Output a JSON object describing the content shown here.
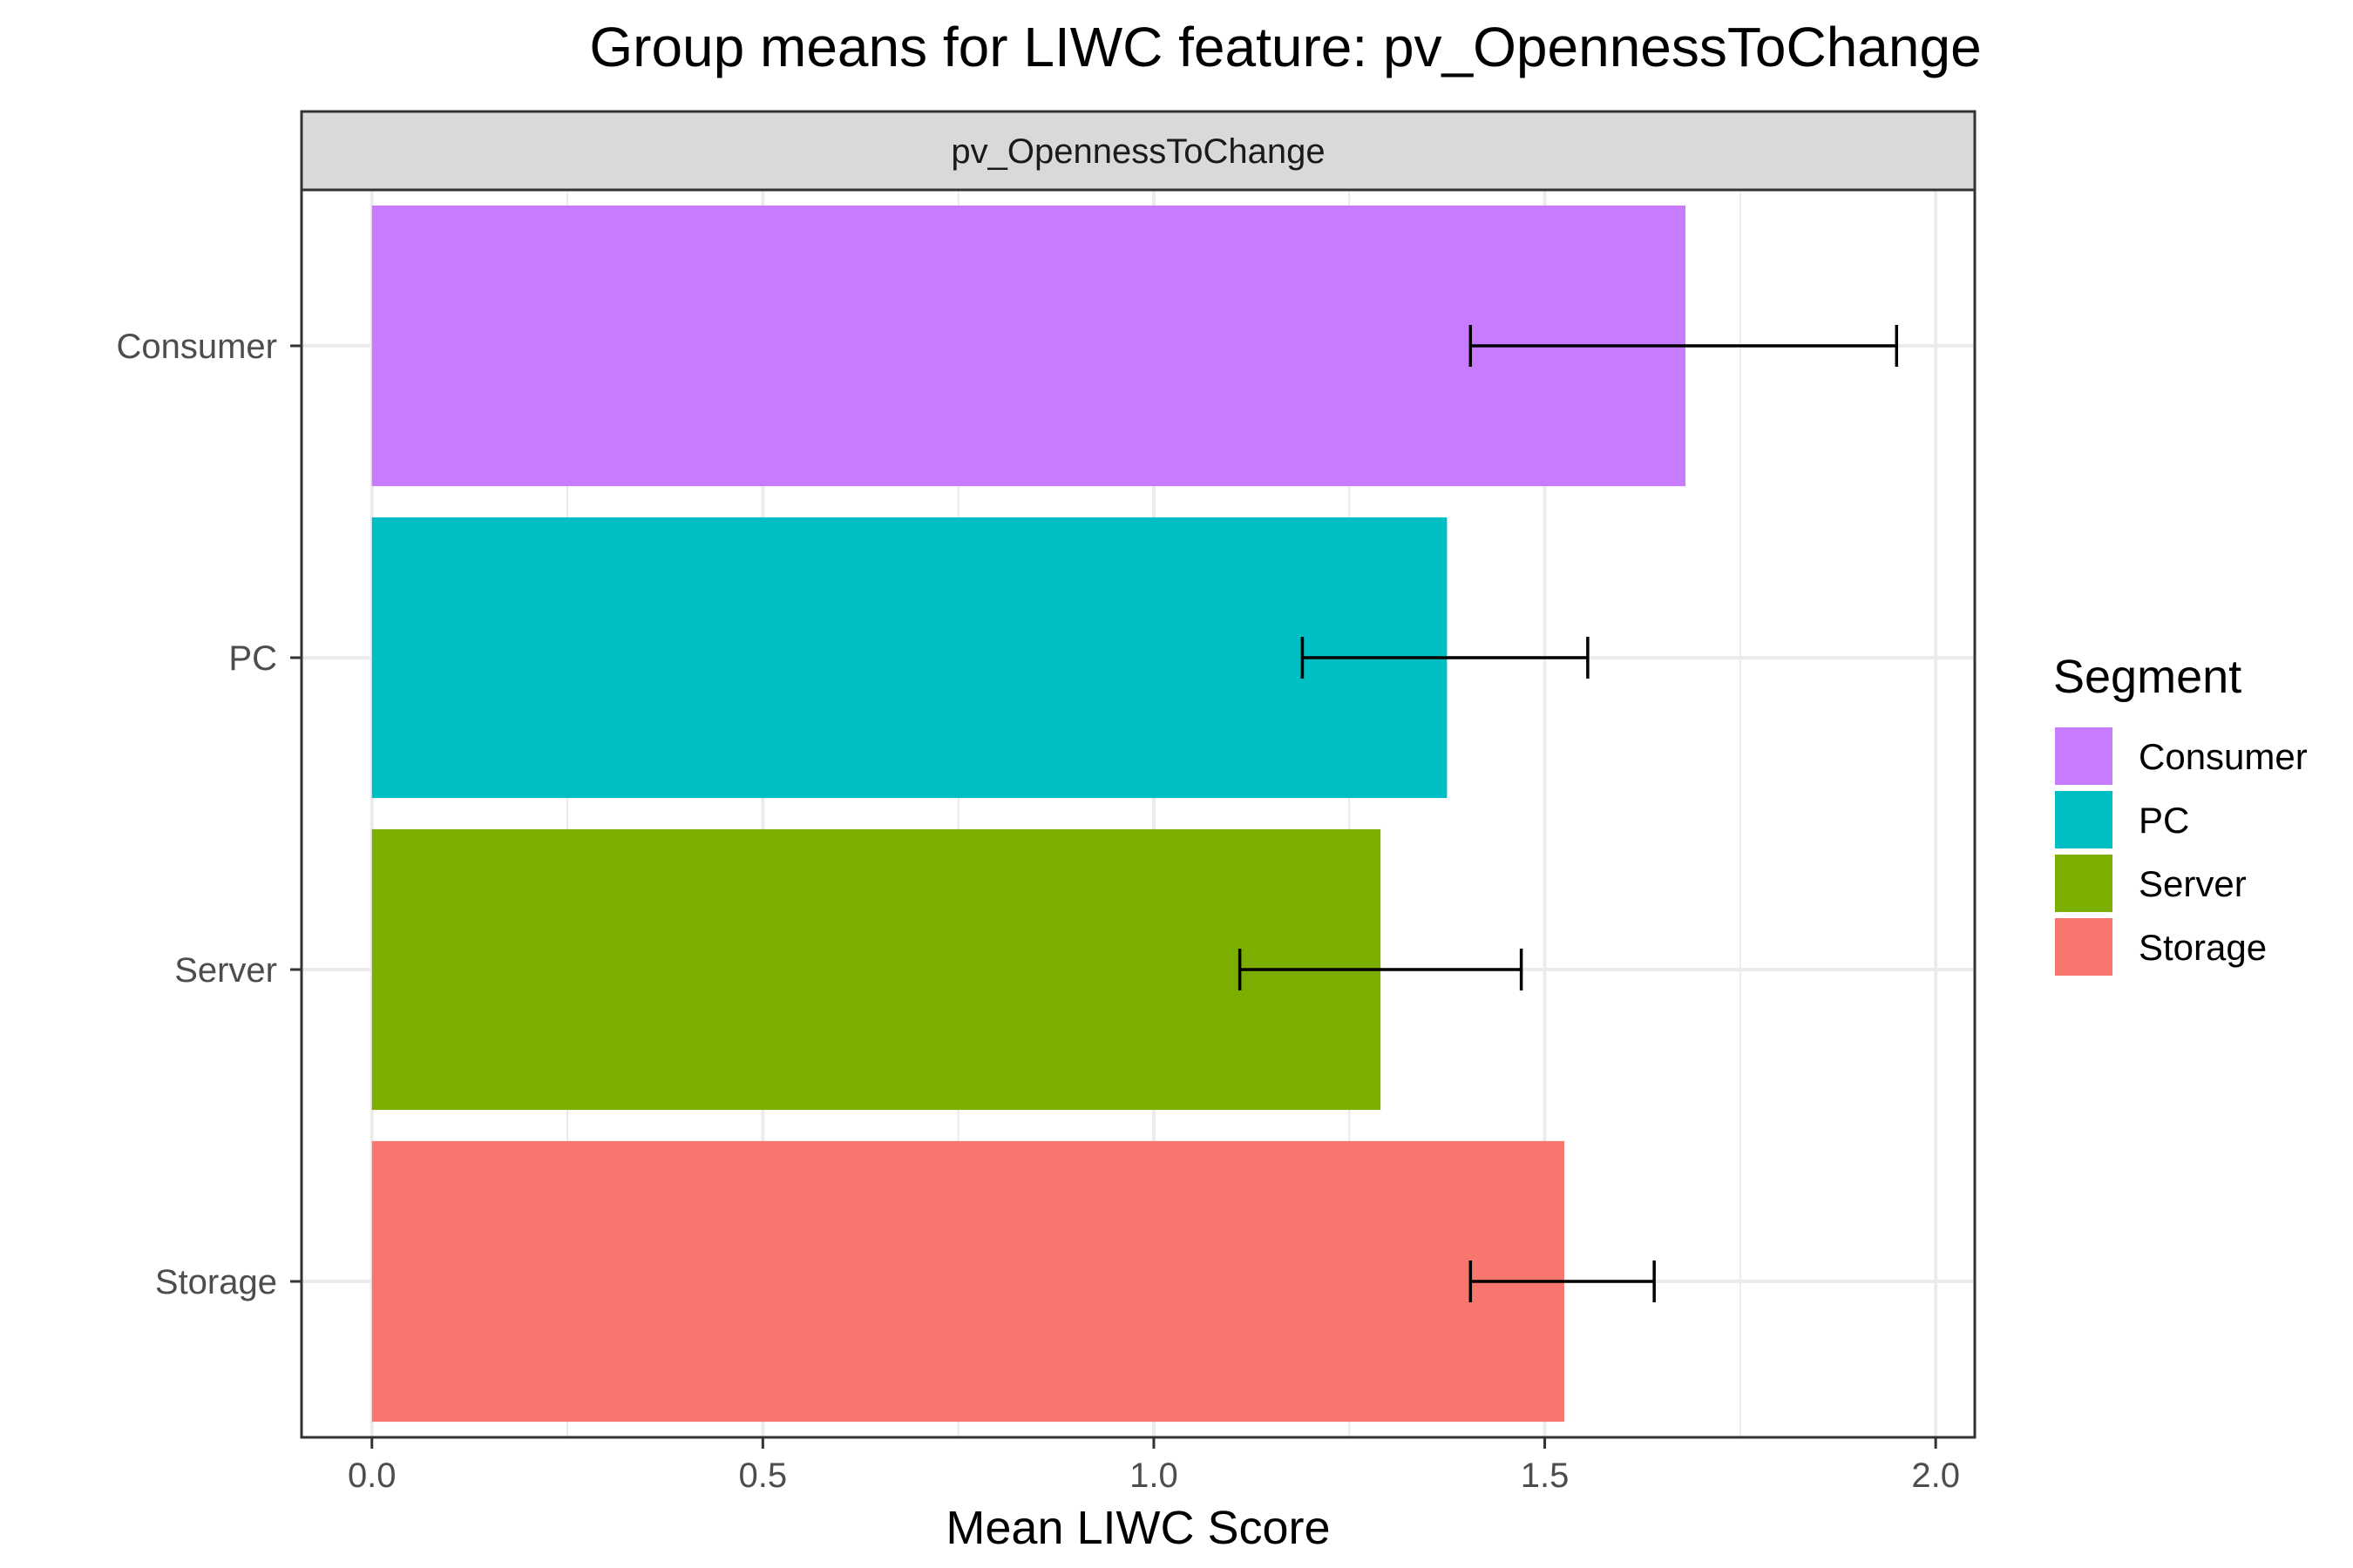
{
  "chart_data": {
    "type": "bar",
    "orientation": "horizontal",
    "title": "Group means for LIWC feature: pv_OpennessToChange",
    "facet_label": "pv_OpennessToChange",
    "xlabel": "Mean LIWC Score",
    "ylabel": "",
    "xlim": [
      -0.09,
      2.05
    ],
    "x_ticks": [
      0.0,
      0.5,
      1.0,
      1.5,
      2.0
    ],
    "x_tick_labels": [
      "0.0",
      "0.5",
      "1.0",
      "1.5",
      "2.0"
    ],
    "grid": true,
    "categories": [
      "Consumer",
      "PC",
      "Server",
      "Storage"
    ],
    "values": [
      1.68,
      1.375,
      1.29,
      1.525
    ],
    "error_low": [
      1.405,
      1.19,
      1.11,
      1.405
    ],
    "error_high": [
      1.95,
      1.555,
      1.47,
      1.64
    ],
    "colors": [
      "#C77CFF",
      "#00BFC4",
      "#7CAE00",
      "#F8766D"
    ],
    "legend": {
      "title": "Segment",
      "position": "right",
      "items": [
        "Consumer",
        "PC",
        "Server",
        "Storage"
      ]
    }
  }
}
